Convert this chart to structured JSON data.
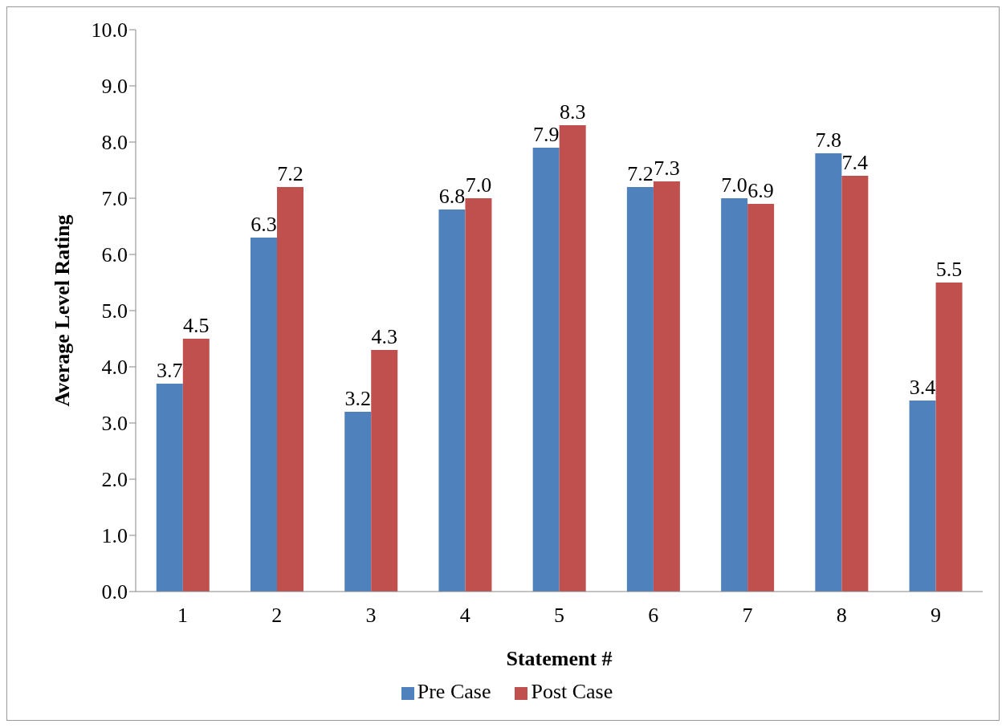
{
  "chart_data": {
    "type": "bar",
    "xlabel": "Statement #",
    "ylabel": "Average Level Rating",
    "categories": [
      "1",
      "2",
      "3",
      "4",
      "5",
      "6",
      "7",
      "8",
      "9"
    ],
    "series": [
      {
        "name": "Pre Case",
        "color": "#4f81bd",
        "values": [
          3.7,
          6.3,
          3.2,
          6.8,
          7.9,
          7.2,
          7.0,
          7.8,
          3.4
        ],
        "value_labels": [
          "3.7",
          "6.3",
          "3.2",
          "6.8",
          "7.9",
          "7.2",
          "7.0",
          "7.8",
          "3.4"
        ]
      },
      {
        "name": "Post Case",
        "color": "#c0504d",
        "values": [
          4.5,
          7.2,
          4.3,
          7.0,
          8.3,
          7.3,
          6.9,
          7.4,
          5.5
        ],
        "value_labels": [
          "4.5",
          "7.2",
          "4.3",
          "7.0",
          "8.3",
          "7.3",
          "6.9",
          "7.4",
          "5.5"
        ]
      }
    ],
    "ylim": [
      0,
      10
    ],
    "yticks": [
      {
        "value": 0,
        "label": "0.0"
      },
      {
        "value": 1,
        "label": "1.0"
      },
      {
        "value": 2,
        "label": "2.0"
      },
      {
        "value": 3,
        "label": "3.0"
      },
      {
        "value": 4,
        "label": "4.0"
      },
      {
        "value": 5,
        "label": "5.0"
      },
      {
        "value": 6,
        "label": "6.0"
      },
      {
        "value": 7,
        "label": "7.0"
      },
      {
        "value": 8,
        "label": "8.0"
      },
      {
        "value": 9,
        "label": "9.0"
      },
      {
        "value": 10,
        "label": "10.0"
      }
    ],
    "grid": false,
    "legend": "bottom"
  }
}
